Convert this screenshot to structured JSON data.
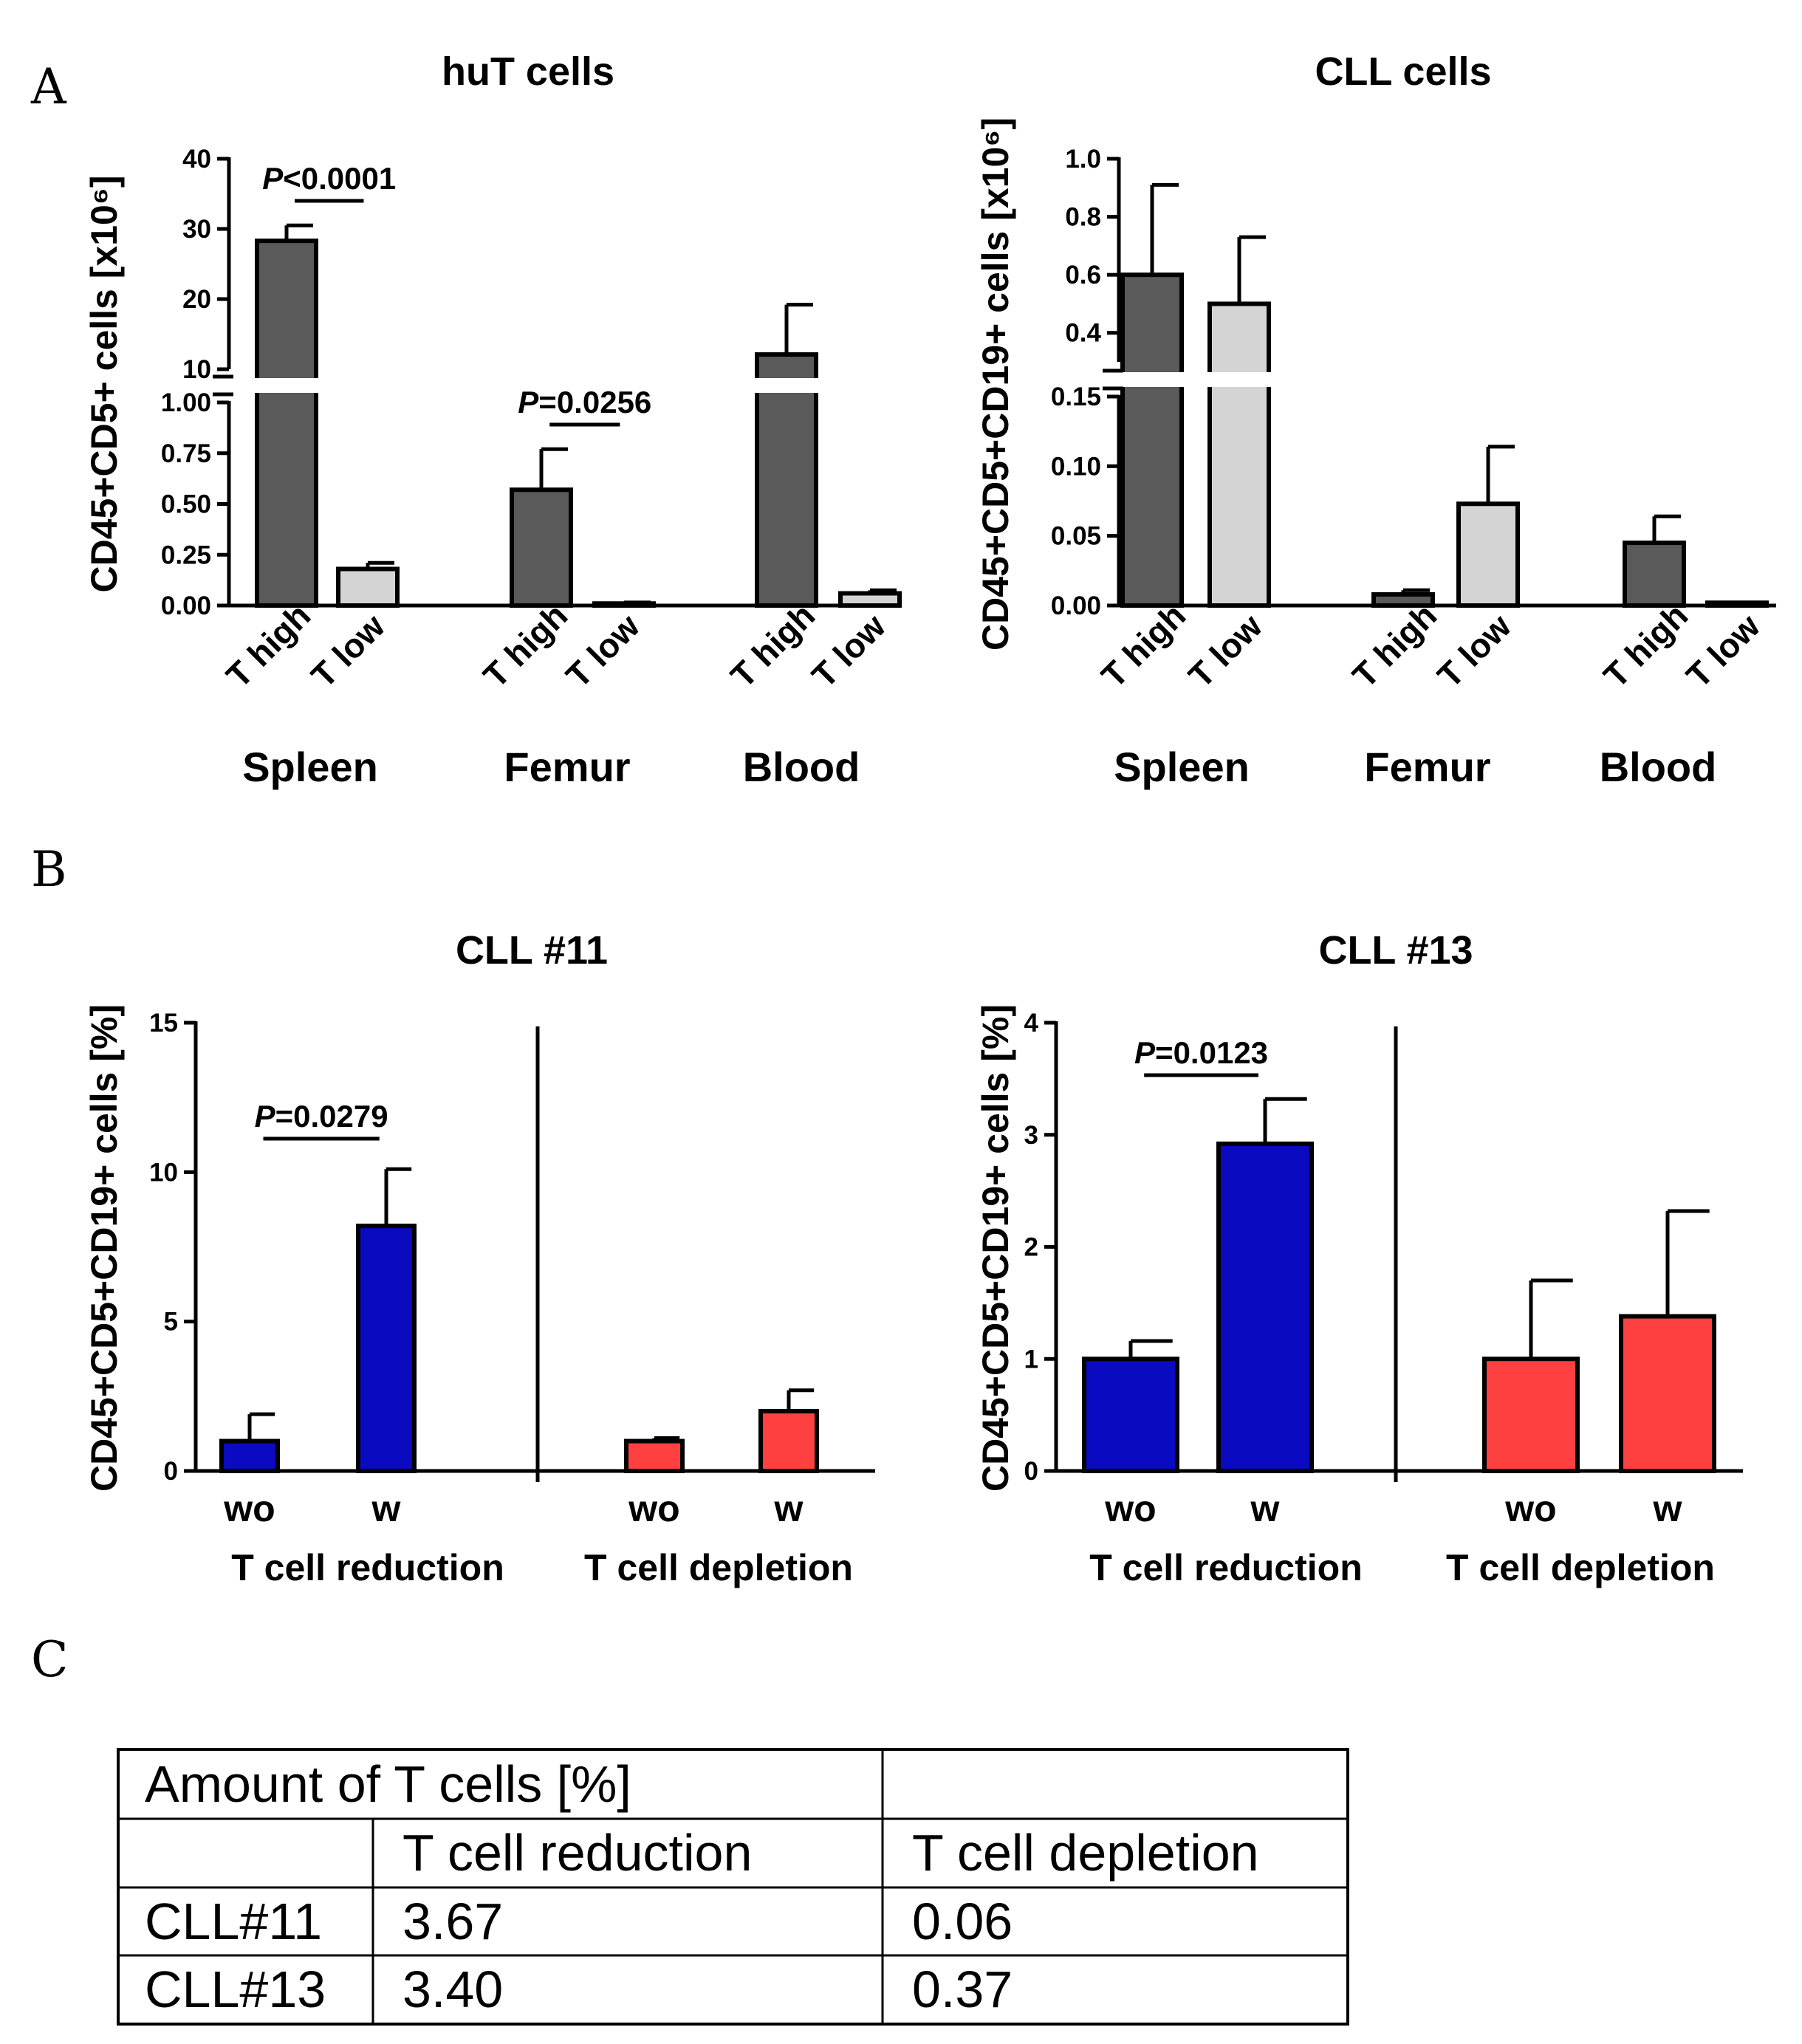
{
  "panels": {
    "A": "A",
    "B": "B",
    "C": "C"
  },
  "chart_data": [
    {
      "id": "huT",
      "type": "bar",
      "title": "huT cells",
      "ylabel": "CD45+CD5+ cells [x10⁶]",
      "yaxis_segments": [
        {
          "range": [
            0,
            1.0
          ],
          "ticks": [
            "0.00",
            "0.25",
            "0.50",
            "0.75",
            "1.00"
          ],
          "tick_values": [
            0,
            0.25,
            0.5,
            0.75,
            1.0
          ]
        },
        {
          "range": [
            10,
            40
          ],
          "ticks": [
            "10",
            "20",
            "30",
            "40"
          ],
          "tick_values": [
            10,
            20,
            30,
            40
          ]
        }
      ],
      "groups": [
        "Spleen",
        "Femur",
        "Blood"
      ],
      "categories": [
        "T high",
        "T low",
        "T high",
        "T low",
        "T high",
        "T low"
      ],
      "values": [
        28.3,
        0.18,
        0.57,
        0.01,
        12.1,
        0.06
      ],
      "errors": [
        30.5,
        0.21,
        0.77,
        0.015,
        19.2,
        0.075
      ],
      "colors": [
        "#5a5a5a",
        "#d4d4d4",
        "#5a5a5a",
        "#d4d4d4",
        "#5a5a5a",
        "#d4d4d4"
      ],
      "annotations": [
        {
          "text": "P<0.0001",
          "from": 0,
          "to": 1
        },
        {
          "text": "P=0.0256",
          "from": 2,
          "to": 3
        }
      ]
    },
    {
      "id": "CLL",
      "type": "bar",
      "title": "CLL cells",
      "ylabel": "CD45+CD5+CD19+ cells [x10⁶]",
      "yaxis_segments": [
        {
          "range": [
            0,
            0.15
          ],
          "ticks": [
            "0.00",
            "0.05",
            "0.10",
            "0.15"
          ],
          "tick_values": [
            0,
            0.05,
            0.1,
            0.15
          ]
        },
        {
          "range": [
            0.3,
            1.0
          ],
          "ticks": [
            "0.4",
            "0.6",
            "0.8",
            "1.0"
          ],
          "tick_values": [
            0.4,
            0.6,
            0.8,
            1.0
          ]
        }
      ],
      "groups": [
        "Spleen",
        "Femur",
        "Blood"
      ],
      "categories": [
        "T high",
        "T low",
        "T high",
        "T low",
        "T high",
        "T low"
      ],
      "values": [
        0.6,
        0.5,
        0.008,
        0.073,
        0.045,
        0.002
      ],
      "errors": [
        0.91,
        0.73,
        0.011,
        0.114,
        0.064,
        0.002
      ],
      "colors": [
        "#5a5a5a",
        "#d4d4d4",
        "#5a5a5a",
        "#d4d4d4",
        "#5a5a5a",
        "#d4d4d4"
      ],
      "annotations": []
    },
    {
      "id": "CLL11",
      "type": "bar",
      "title": "CLL #11",
      "ylabel": "CD45+CD5+CD19+ cells [%]",
      "ylim": [
        0,
        15
      ],
      "ticks": [
        "0",
        "5",
        "10",
        "15"
      ],
      "tick_values": [
        0,
        5,
        10,
        15
      ],
      "groups": [
        "T cell reduction",
        "T cell depletion"
      ],
      "categories": [
        "wo",
        "w",
        "wo",
        "w"
      ],
      "values": [
        1.0,
        8.2,
        1.0,
        2.0
      ],
      "errors": [
        1.9,
        10.1,
        1.1,
        2.7
      ],
      "colors": [
        "#0a0ac0",
        "#0a0ac0",
        "#ff4040",
        "#ff4040"
      ],
      "annotations": [
        {
          "text": "P=0.0279",
          "from": 0,
          "to": 1
        }
      ]
    },
    {
      "id": "CLL13",
      "type": "bar",
      "title": "CLL #13",
      "ylabel": "CD45+CD5+CD19+ cells [%]",
      "ylim": [
        0,
        4
      ],
      "ticks": [
        "0",
        "1",
        "2",
        "3",
        "4"
      ],
      "tick_values": [
        0,
        1,
        2,
        3,
        4
      ],
      "groups": [
        "T cell reduction",
        "T cell depletion"
      ],
      "categories": [
        "wo",
        "w",
        "wo",
        "w"
      ],
      "values": [
        1.0,
        2.92,
        1.0,
        1.38
      ],
      "errors": [
        1.16,
        3.32,
        1.7,
        2.32
      ],
      "colors": [
        "#0a0ac0",
        "#0a0ac0",
        "#ff4040",
        "#ff4040"
      ],
      "annotations": [
        {
          "text": "P=0.0123",
          "from": 0,
          "to": 1
        }
      ]
    }
  ],
  "table": {
    "header": [
      "Amount of T cells [%]",
      ""
    ],
    "subheader": [
      "",
      "T cell reduction",
      "T cell depletion"
    ],
    "rows": [
      [
        "CLL#11",
        "3.67",
        "0.06"
      ],
      [
        "CLL#13",
        "3.40",
        "0.37"
      ]
    ]
  }
}
